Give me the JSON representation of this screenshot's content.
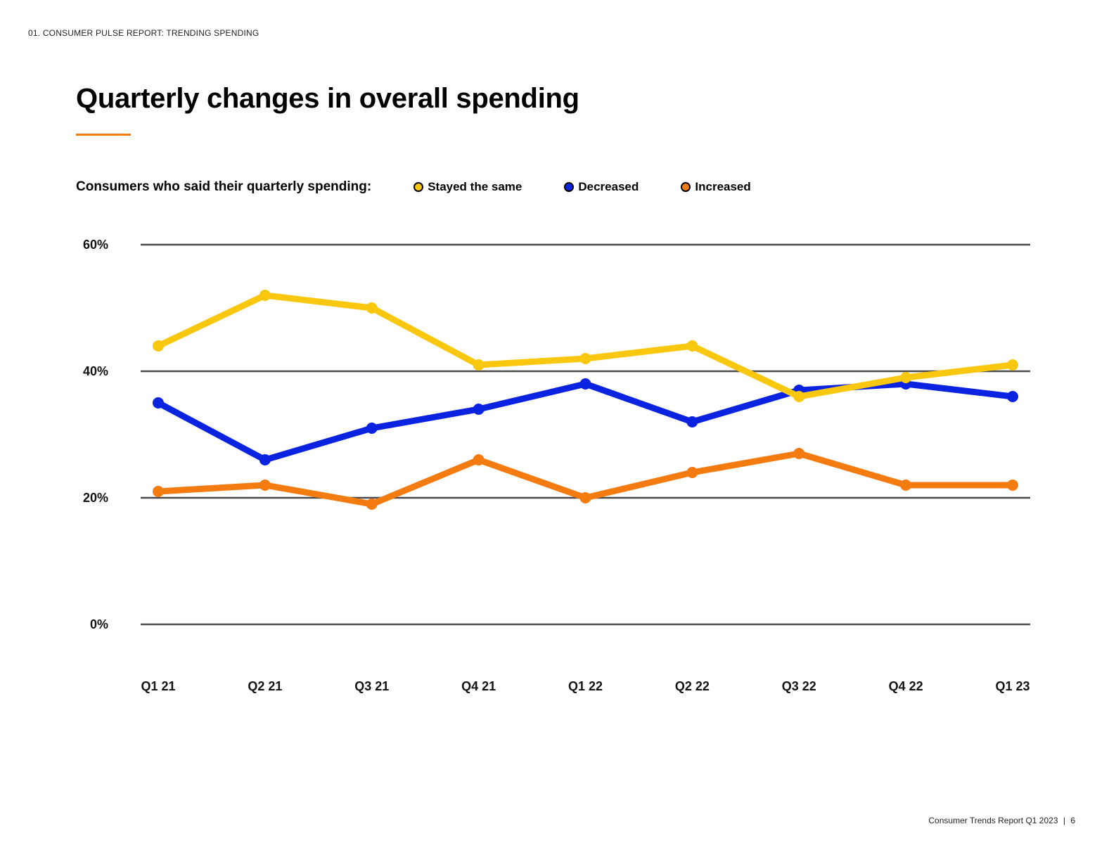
{
  "header": {
    "section": "01. CONSUMER PULSE REPORT: TRENDING SPENDING"
  },
  "title": "Quarterly changes in overall spending",
  "legend": {
    "caption": "Consumers who said their quarterly spending:",
    "items": [
      {
        "label": "Stayed the same",
        "color": "#f9c80e"
      },
      {
        "label": "Decreased",
        "color": "#0a23e0"
      },
      {
        "label": "Increased",
        "color": "#f47b10"
      }
    ]
  },
  "footer": {
    "report": "Consumer Trends Report Q1 2023",
    "separator": "|",
    "page": "6"
  },
  "chart_data": {
    "type": "line",
    "title": "Quarterly changes in overall spending",
    "xlabel": "",
    "ylabel": "",
    "categories": [
      "Q1 21",
      "Q2 21",
      "Q3 21",
      "Q4 21",
      "Q1 22",
      "Q2 22",
      "Q3 22",
      "Q4 22",
      "Q1 23"
    ],
    "y_ticks": [
      "0%",
      "20%",
      "40%",
      "60%"
    ],
    "y_tick_values": [
      0,
      20,
      40,
      60
    ],
    "ylim": [
      0,
      60
    ],
    "grid": true,
    "legend_position": "top",
    "series": [
      {
        "name": "Stayed the same",
        "color": "#f9c80e",
        "values": [
          44,
          52,
          50,
          41,
          42,
          44,
          36,
          39,
          41
        ]
      },
      {
        "name": "Decreased",
        "color": "#0a23e0",
        "values": [
          35,
          26,
          31,
          34,
          38,
          32,
          37,
          38,
          36
        ]
      },
      {
        "name": "Increased",
        "color": "#f47b10",
        "values": [
          21,
          22,
          19,
          26,
          20,
          24,
          27,
          22,
          22
        ]
      }
    ]
  }
}
